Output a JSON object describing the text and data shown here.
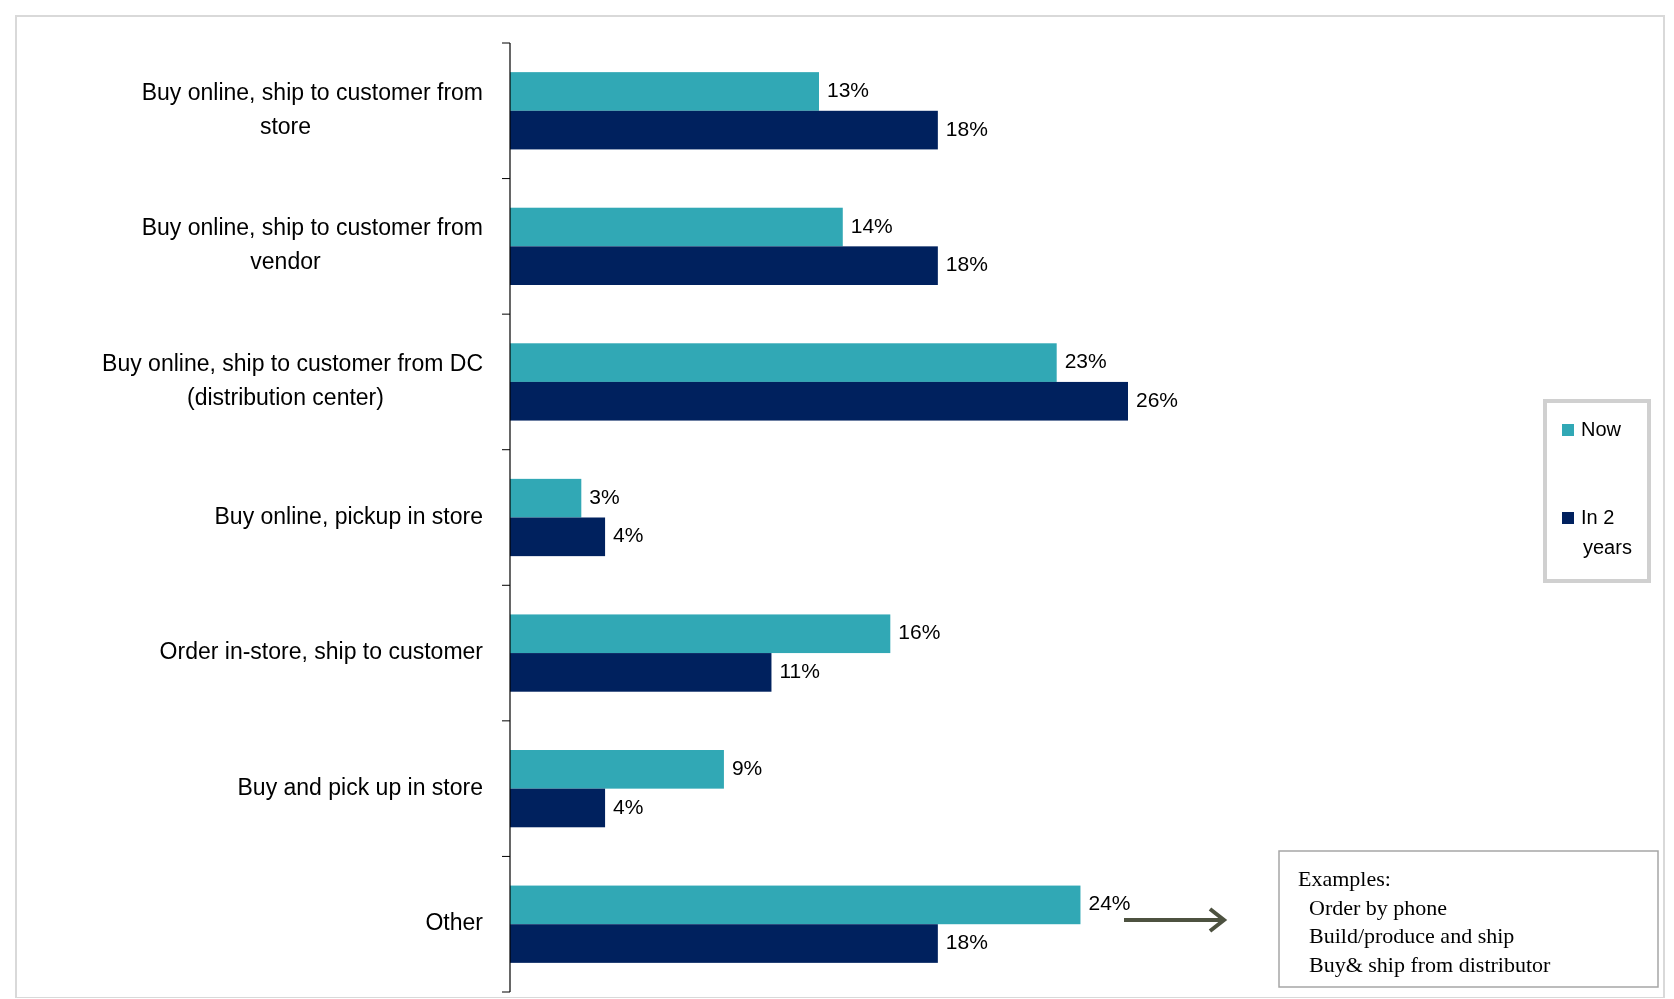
{
  "chart_data": {
    "type": "bar",
    "orientation": "horizontal",
    "categories": [
      "Buy online, ship to customer from store",
      "Buy online, ship to customer from vendor",
      "Buy online, ship to customer from DC (distribution center)",
      "Buy online, pickup in store",
      "Order in-store, ship to customer",
      "Buy and pick up in store",
      "Other"
    ],
    "series": [
      {
        "name": "Now",
        "color": "#31a8b5",
        "values": [
          13,
          14,
          23,
          3,
          16,
          9,
          24
        ],
        "value_labels": [
          "13%",
          "14%",
          "23%",
          "3%",
          "16%",
          "9%",
          "24%"
        ]
      },
      {
        "name": "In 2 years",
        "color": "#00215e",
        "values": [
          18,
          18,
          26,
          4,
          11,
          4,
          18
        ],
        "value_labels": [
          "18%",
          "18%",
          "26%",
          "4%",
          "11%",
          "4%",
          "18%"
        ]
      }
    ],
    "legend": "right",
    "annotations": [
      "Examples:\n  Order by phone\n  Build/produce and ship\n  Buy& ship from distributor"
    ]
  }
}
